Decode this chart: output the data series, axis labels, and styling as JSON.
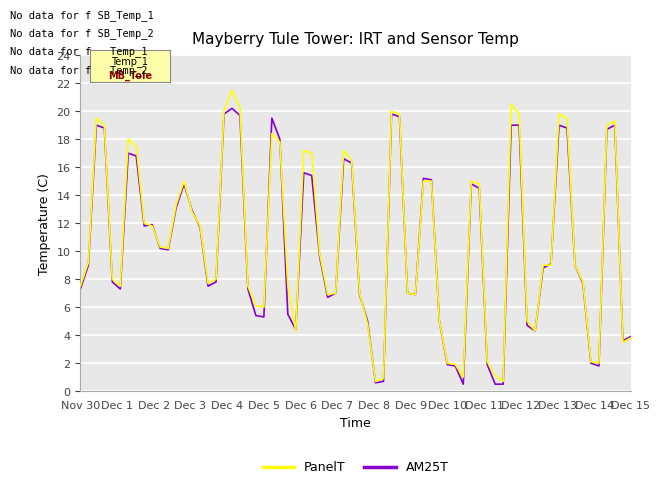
{
  "title": "Mayberry Tule Tower: IRT and Sensor Temp",
  "xlabel": "Time",
  "ylabel": "Temperature (C)",
  "ylim": [
    0,
    24
  ],
  "yticks": [
    0,
    2,
    4,
    6,
    8,
    10,
    12,
    14,
    16,
    18,
    20,
    22,
    24
  ],
  "bg_color": "#e8e8e8",
  "panel_color": "#ffff00",
  "am25_color": "#8800cc",
  "legend_labels": [
    "PanelT",
    "AM25T"
  ],
  "no_data_texts": [
    "No data for f SB_Temp_1",
    "No data for f SB_Temp_2",
    "No data for f   Temp_1",
    "No data for f   Temp_2"
  ],
  "x_tick_labels": [
    "Nov 30",
    "Dec 1",
    "Dec 2",
    "Dec 3",
    "Dec 4",
    "Dec 5",
    "Dec 6",
    "Dec 7",
    "Dec 8",
    "Dec 9",
    "Dec 10",
    "Dec 11",
    "Dec 12",
    "Dec 13",
    "Dec 14",
    "Dec 15"
  ],
  "panel_t": [
    7.5,
    9.2,
    19.5,
    19.0,
    8.0,
    7.5,
    18.0,
    17.5,
    12.0,
    11.8,
    10.3,
    10.2,
    13.3,
    15.0,
    12.8,
    11.8,
    7.7,
    8.0,
    20.0,
    21.5,
    20.3,
    7.5,
    6.1,
    6.0,
    18.4,
    17.8,
    7.6,
    4.3,
    17.2,
    17.0,
    9.8,
    6.9,
    7.0,
    17.2,
    16.5,
    7.0,
    4.8,
    0.7,
    0.9,
    20.0,
    19.8,
    7.0,
    6.9,
    15.0,
    15.0,
    5.0,
    2.0,
    1.9,
    1.0,
    15.0,
    14.8,
    2.1,
    1.1,
    0.7,
    20.5,
    19.8,
    5.0,
    4.3,
    9.0,
    9.0,
    19.8,
    19.5,
    9.0,
    7.8,
    2.1,
    2.0,
    19.0,
    19.3,
    3.5,
    3.8
  ],
  "am25_t": [
    7.3,
    9.0,
    19.0,
    18.8,
    7.8,
    7.3,
    17.0,
    16.8,
    11.8,
    11.9,
    10.2,
    10.1,
    13.1,
    14.8,
    12.9,
    11.7,
    7.5,
    7.8,
    19.8,
    20.2,
    19.7,
    7.3,
    5.4,
    5.3,
    19.5,
    18.0,
    5.5,
    4.4,
    15.6,
    15.4,
    9.6,
    6.7,
    7.0,
    16.6,
    16.3,
    6.9,
    5.0,
    0.6,
    0.7,
    19.8,
    19.6,
    7.0,
    6.9,
    15.2,
    15.1,
    5.0,
    1.9,
    1.8,
    0.5,
    14.8,
    14.5,
    1.9,
    0.5,
    0.5,
    19.0,
    19.0,
    4.7,
    4.3,
    8.8,
    9.1,
    19.0,
    18.8,
    9.0,
    7.7,
    2.0,
    1.8,
    18.7,
    19.0,
    3.6,
    3.9
  ],
  "tooltip_box": {
    "text_top": "Temp_1",
    "text_bot": "MB_Tole",
    "bg": "#ffffaa",
    "border": "#888888"
  }
}
